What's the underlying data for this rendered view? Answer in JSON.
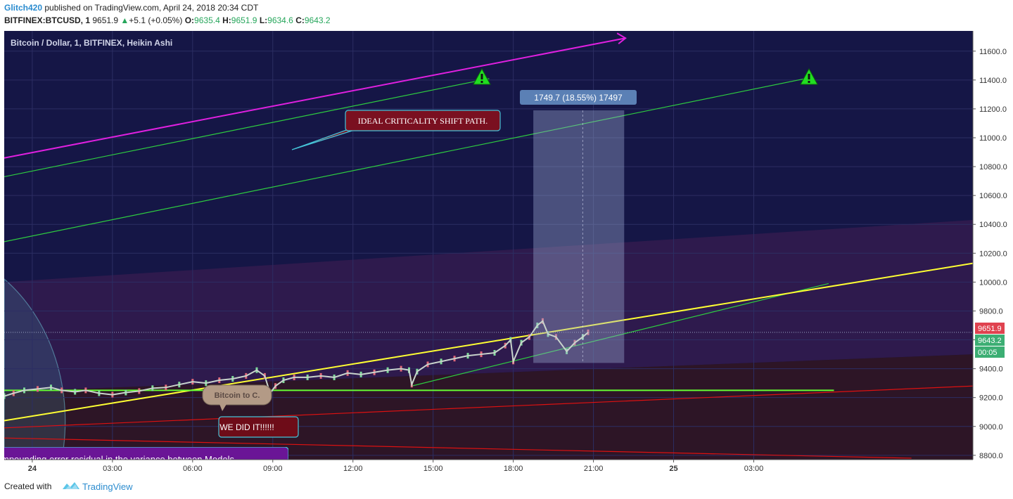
{
  "header": {
    "author": "Glitch420",
    "published_text": "published on TradingView.com, April 24, 2018 20:34 CDT",
    "symbol": "BITFINEX:BTCUSD, 1",
    "last": "9651.9",
    "change": "+5.1 (+0.05%)",
    "o_label": "O:",
    "o": "9635.4",
    "h_label": "H:",
    "h": "9651.9",
    "l_label": "L:",
    "l": "9634.6",
    "c_label": "C:",
    "c": "9643.2"
  },
  "footer": {
    "created_with": "Created with",
    "brand": "TradingView"
  },
  "chart_data": {
    "type": "line",
    "title": "Bitcoin / Dollar, 1, BITFINEX, Heikin Ashi",
    "y_ticks": [
      8800,
      9000,
      9200,
      9400,
      9600,
      9800,
      10000,
      10200,
      10400,
      10600,
      10800,
      11000,
      11200,
      11400,
      11600
    ],
    "y_tick_labels": [
      "8800.0",
      "9000.0",
      "9200.0",
      "9400.0",
      "9600.0",
      "9800.0",
      "10000.0",
      "10200.0",
      "10400.0",
      "10600.0",
      "10800.0",
      "11000.0",
      "11200.0",
      "11400.0",
      "11600.0"
    ],
    "ylim": [
      8770,
      11740
    ],
    "x_ticks": [
      0,
      3,
      6,
      9,
      12,
      15,
      18,
      21,
      24,
      27
    ],
    "x_tick_labels": [
      "24",
      "03:00",
      "06:00",
      "09:00",
      "12:00",
      "15:00",
      "18:00",
      "21:00",
      "25",
      "03:00"
    ],
    "xlim": [
      -1.05,
      35.2
    ],
    "last_price": "9651.9",
    "close_price": "9643.2",
    "countdown": "00:05",
    "price_series": {
      "x": [
        -1.05,
        -0.7,
        -0.3,
        0.2,
        0.7,
        1.1,
        1.6,
        2.0,
        2.5,
        3.0,
        3.5,
        4.0,
        4.5,
        5.0,
        5.5,
        6.0,
        6.5,
        7.0,
        7.5,
        8.0,
        8.4,
        8.7,
        8.9,
        9.1,
        9.4,
        9.8,
        10.3,
        10.8,
        11.3,
        11.8,
        12.3,
        12.8,
        13.3,
        13.8,
        14.1,
        14.2,
        14.4,
        14.8,
        15.3,
        15.8,
        16.3,
        16.8,
        17.3,
        17.7,
        17.9,
        18.0,
        18.3,
        18.6,
        18.9,
        19.1,
        19.3,
        19.6,
        20.0,
        20.3,
        20.6,
        20.8
      ],
      "y": [
        9210,
        9230,
        9250,
        9260,
        9270,
        9250,
        9240,
        9250,
        9230,
        9220,
        9235,
        9245,
        9265,
        9270,
        9290,
        9310,
        9300,
        9320,
        9330,
        9350,
        9390,
        9350,
        9230,
        9280,
        9320,
        9340,
        9340,
        9350,
        9340,
        9370,
        9360,
        9375,
        9390,
        9400,
        9390,
        9290,
        9380,
        9430,
        9450,
        9470,
        9490,
        9500,
        9510,
        9560,
        9600,
        9450,
        9580,
        9620,
        9700,
        9730,
        9640,
        9620,
        9520,
        9580,
        9620,
        9652
      ]
    },
    "trend_lines": [
      {
        "name": "magenta",
        "color": "#e020e0",
        "x": [
          -1.05,
          22.2
        ],
        "y": [
          10860,
          11690
        ]
      },
      {
        "name": "green-upper",
        "color": "#2ecc40",
        "x": [
          -1.05,
          17.1
        ],
        "y": [
          10730,
          11410
        ]
      },
      {
        "name": "green-mid",
        "color": "#2ecc40",
        "x": [
          -1.05,
          29.2
        ],
        "y": [
          10280,
          11420
        ]
      },
      {
        "name": "green-lower",
        "color": "#2ecc40",
        "x": [
          14.2,
          29.8
        ],
        "y": [
          9280,
          9990
        ]
      },
      {
        "name": "yellow",
        "color": "#ffff33",
        "x": [
          -1.05,
          35.2
        ],
        "y": [
          9040,
          10130
        ]
      },
      {
        "name": "lime-support",
        "color": "#66ff33",
        "x": [
          -1.05,
          30.0
        ],
        "y": [
          9250,
          9250
        ]
      },
      {
        "name": "red-rising",
        "color": "#dd1111",
        "x": [
          -1.05,
          35.2
        ],
        "y": [
          8990,
          9280
        ]
      },
      {
        "name": "red-falling",
        "color": "#dd1111",
        "x": [
          -1.05,
          32.9
        ],
        "y": [
          8920,
          8780
        ]
      }
    ],
    "measure": {
      "x0": 18.75,
      "x1": 22.15,
      "y0": 9440,
      "y1": 11190,
      "label": "1749.7 (18.55%) 17497"
    },
    "annotations": [
      {
        "text": "IDEAL CRITICALITY SHIFT  PATH."
      },
      {
        "text": "Bitcoin to C."
      },
      {
        "text": "WE DID IT!!!!!!"
      },
      {
        "text": "mpounding error residual in the variance between Models"
      }
    ],
    "grid": true,
    "colors": {
      "background": "#151646",
      "grid": "#2c2e63",
      "purple_band": "#2e1a4d",
      "red_band": "#2d1526",
      "axis_bg": "#ffffff"
    }
  }
}
